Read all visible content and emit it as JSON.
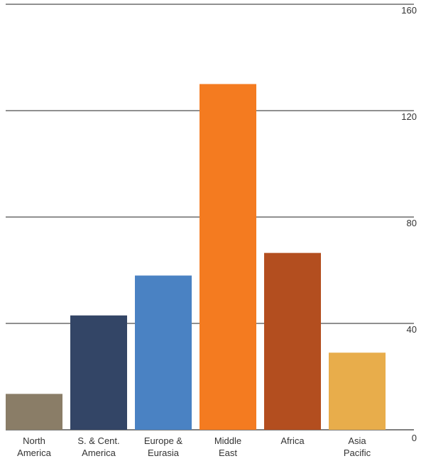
{
  "chart_data": {
    "type": "bar",
    "categories": [
      [
        "North",
        "America"
      ],
      [
        "S. & Cent.",
        "America"
      ],
      [
        "Europe &",
        "Eurasia"
      ],
      [
        "Middle",
        "East"
      ],
      [
        "Africa"
      ],
      [
        "Asia",
        "Pacific"
      ]
    ],
    "values": [
      13.5,
      43,
      58,
      130,
      66.5,
      29
    ],
    "colors": [
      "#8a7d67",
      "#334566",
      "#4a82c3",
      "#f47b20",
      "#b34e1f",
      "#e8ad4b"
    ],
    "ylim": [
      0,
      160
    ],
    "yticks": [
      0,
      40,
      80,
      120,
      160
    ],
    "grid": true,
    "legend": "none",
    "title": "",
    "xlabel": "",
    "ylabel": ""
  }
}
